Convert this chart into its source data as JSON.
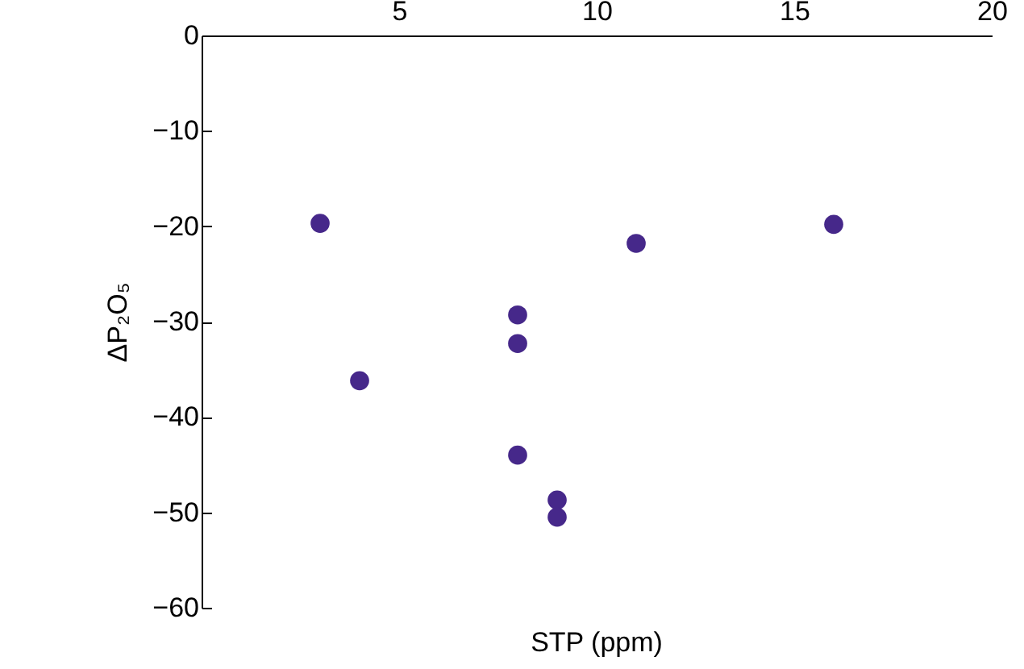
{
  "chart_data": {
    "type": "scatter",
    "xlabel": "STP (ppm)",
    "ylabel": "ΔP₂O₅",
    "x": [
      3,
      4,
      8,
      8,
      8,
      9,
      9,
      11,
      16
    ],
    "series": [
      {
        "color": "#46288a",
        "values": [
          -19.7,
          -36.2,
          -29.3,
          -32.3,
          -44,
          -48.7,
          -50.5,
          -21.8,
          -19.8
        ]
      }
    ],
    "xlim": [
      0,
      20
    ],
    "xticks": [
      5,
      10,
      15,
      20
    ],
    "ylim": [
      -60,
      0
    ],
    "yticks": [
      -60,
      -50,
      -40,
      -30,
      -20,
      -10,
      0
    ],
    "grid": false,
    "marker": "circle"
  }
}
